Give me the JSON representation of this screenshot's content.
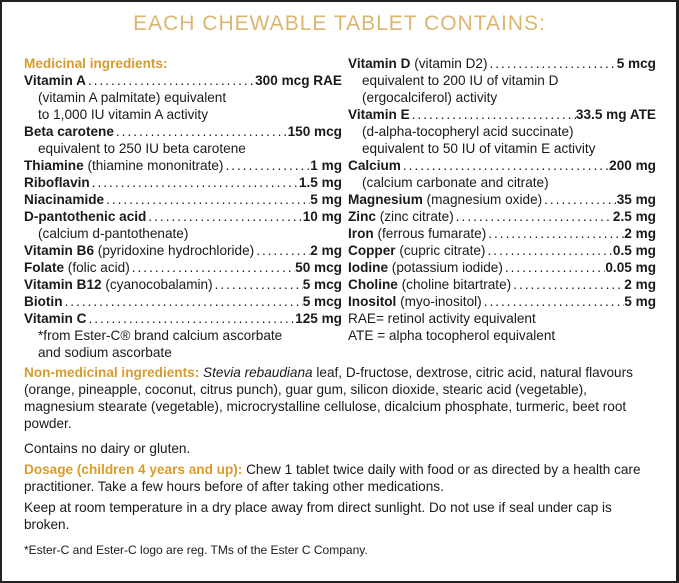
{
  "title": "EACH CHEWABLE TABLET CONTAINS:",
  "medicinal_heading": "Medicinal ingredients:",
  "left": [
    {
      "name": "Vitamin A",
      "detail": "",
      "value": "300 mcg RAE",
      "sub": [
        "(vitamin A palmitate) equivalent",
        "to 1,000 IU vitamin A activity"
      ]
    },
    {
      "name": "Beta carotene",
      "detail": "",
      "value": "150 mcg",
      "sub": [
        "equivalent to 250 IU beta carotene"
      ]
    },
    {
      "name": "Thiamine",
      "detail": " (thiamine mononitrate)",
      "value": "1 mg",
      "sub": []
    },
    {
      "name": "Riboflavin",
      "detail": "",
      "value": "1.5 mg",
      "sub": []
    },
    {
      "name": "Niacinamide",
      "detail": "",
      "value": "5 mg",
      "sub": []
    },
    {
      "name": "D-pantothenic acid",
      "detail": "",
      "value": "10 mg",
      "sub": [
        "(calcium d-pantothenate)"
      ]
    },
    {
      "name": "Vitamin B6",
      "detail": " (pyridoxine hydrochloride)",
      "value": "2 mg",
      "sub": []
    },
    {
      "name": "Folate",
      "detail": " (folic acid)",
      "value": "50 mcg",
      "sub": []
    },
    {
      "name": "Vitamin B12",
      "detail": " (cyanocobalamin)",
      "value": "5 mcg",
      "sub": []
    },
    {
      "name": "Biotin",
      "detail": "",
      "value": "5 mcg",
      "sub": []
    },
    {
      "name": "Vitamin C",
      "detail": "",
      "value": "125 mg",
      "sub": [
        "*from Ester-C® brand calcium ascorbate",
        "and sodium ascorbate"
      ]
    }
  ],
  "right": [
    {
      "name": "Vitamin D",
      "detail": " (vitamin D2)",
      "value": "5 mcg",
      "sub": [
        "equivalent to 200 IU of vitamin D",
        "(ergocalciferol) activity"
      ]
    },
    {
      "name": "Vitamin E",
      "detail": "",
      "value": "33.5 mg ATE",
      "sub": [
        "(d-alpha-tocopheryl acid succinate)",
        "equivalent to 50 IU of vitamin E activity"
      ]
    },
    {
      "name": "Calcium",
      "detail": "",
      "value": "200 mg",
      "sub": [
        "(calcium carbonate and citrate)"
      ]
    },
    {
      "name": "Magnesium",
      "detail": " (magnesium oxide)",
      "value": "35 mg",
      "sub": []
    },
    {
      "name": "Zinc",
      "detail": " (zinc citrate)",
      "value": "2.5 mg",
      "sub": []
    },
    {
      "name": "Iron",
      "detail": " (ferrous fumarate)",
      "value": "2 mg",
      "sub": []
    },
    {
      "name": "Copper",
      "detail": " (cupric citrate)",
      "value": "0.5 mg",
      "sub": []
    },
    {
      "name": "Iodine",
      "detail": " (potassium iodide)",
      "value": "0.05 mg",
      "sub": []
    },
    {
      "name": "Choline",
      "detail": " (choline bitartrate)",
      "value": "2 mg",
      "sub": []
    },
    {
      "name": "Inositol",
      "detail": " (myo-inositol)",
      "value": "5 mg",
      "sub": []
    }
  ],
  "rae_note": "RAE= retinol activity equivalent",
  "ate_note": "ATE = alpha tocopherol equivalent",
  "non_medicinal_heading": "Non-medicinal ingredients:",
  "non_medicinal_italic": "Stevia rebaudiana",
  "non_medicinal_text": " leaf, D-fructose, dextrose, citric acid, natural flavours (orange, pineapple, coconut, citrus punch), guar gum, silicon dioxide, stearic acid (vegetable), magnesium stearate (vegetable), microcrystalline cellulose, dicalcium phosphate, turmeric, beet root powder.",
  "contains": "Contains no dairy or gluten.",
  "dosage_heading": "Dosage (children 4 years and up):",
  "dosage_text": " Chew 1 tablet twice daily with food or as directed by a health care practitioner. Take a few hours before of after taking other medications.",
  "storage": "Keep at room temperature in a dry place away from direct sunlight. Do not use if seal under cap is broken.",
  "footnote": "*Ester-C and Ester-C logo are reg. TMs of the Ester C Company.",
  "colors": {
    "heading": "#d89b2e",
    "title": "#dcb56e"
  }
}
